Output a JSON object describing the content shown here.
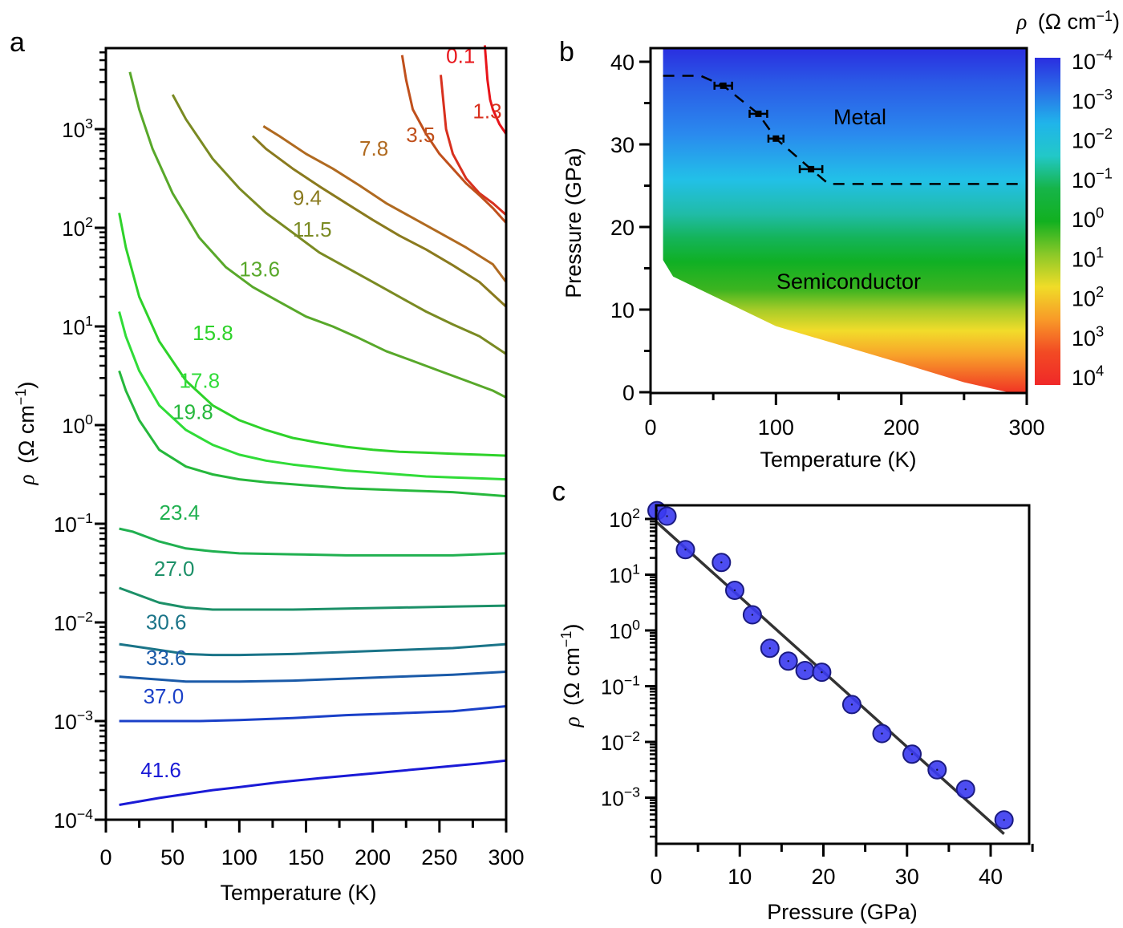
{
  "chart_data": [
    {
      "panel": "a",
      "type": "line",
      "xlabel": "Temperature (K)",
      "ylabel": "ρ (Ω cm⁻¹)",
      "xlim": [
        0,
        300
      ],
      "ylim_log10": [
        -4,
        3.8
      ],
      "yscale": "log",
      "xticks": [
        "0",
        "50",
        "100",
        "150",
        "200",
        "250",
        "300"
      ],
      "yticks": [
        {
          "exp": "−4"
        },
        {
          "exp": "−3"
        },
        {
          "exp": "−2"
        },
        {
          "exp": "−1"
        },
        {
          "exp": "0"
        },
        {
          "exp": "1"
        },
        {
          "exp": "2"
        },
        {
          "exp": "3"
        }
      ],
      "series": [
        {
          "name": "0.1",
          "color": "#e8141a",
          "x": [
            284,
            286,
            288,
            290,
            295,
            300
          ],
          "log10y": [
            3.85,
            3.5,
            3.3,
            3.2,
            3.05,
            2.95
          ],
          "label_x": 255,
          "label_log10y": 3.67
        },
        {
          "name": "1.3",
          "color": "#d8301e",
          "x": [
            251,
            255,
            260,
            270,
            280,
            290,
            300
          ],
          "log10y": [
            3.55,
            3.0,
            2.75,
            2.5,
            2.35,
            2.25,
            2.13
          ],
          "label_x": 275,
          "label_log10y": 3.11
        },
        {
          "name": "3.5",
          "color": "#c0501c",
          "x": [
            222,
            225,
            230,
            240,
            250,
            260,
            270,
            280,
            290,
            300
          ],
          "log10y": [
            3.75,
            3.5,
            3.2,
            2.95,
            2.75,
            2.6,
            2.45,
            2.33,
            2.2,
            2.05
          ],
          "label_x": 225,
          "label_log10y": 2.87
        },
        {
          "name": "7.8",
          "color": "#b06a20",
          "x": [
            118,
            130,
            150,
            170,
            190,
            210,
            230,
            250,
            270,
            290,
            300
          ],
          "log10y": [
            3.03,
            2.93,
            2.75,
            2.6,
            2.43,
            2.25,
            2.1,
            1.95,
            1.8,
            1.63,
            1.45
          ],
          "label_x": 190,
          "label_log10y": 2.73
        },
        {
          "name": "9.4",
          "color": "#8a7a1e",
          "x": [
            110,
            120,
            140,
            160,
            180,
            200,
            220,
            240,
            260,
            280,
            300
          ],
          "log10y": [
            2.93,
            2.8,
            2.6,
            2.42,
            2.25,
            2.08,
            1.92,
            1.78,
            1.62,
            1.45,
            1.2
          ],
          "label_x": 140,
          "label_log10y": 2.23
        },
        {
          "name": "11.5",
          "color": "#7a8a22",
          "x": [
            50,
            60,
            80,
            100,
            120,
            140,
            160,
            180,
            200,
            220,
            240,
            260,
            280,
            300
          ],
          "log10y": [
            3.35,
            3.1,
            2.7,
            2.4,
            2.15,
            1.95,
            1.75,
            1.6,
            1.45,
            1.3,
            1.15,
            1.02,
            0.9,
            0.72
          ],
          "label_x": 140,
          "label_log10y": 1.91
        },
        {
          "name": "13.6",
          "color": "#58a82a",
          "x": [
            18,
            25,
            35,
            50,
            70,
            90,
            110,
            130,
            150,
            170,
            190,
            210,
            230,
            250,
            270,
            290,
            300
          ],
          "log10y": [
            3.58,
            3.2,
            2.8,
            2.35,
            1.9,
            1.6,
            1.4,
            1.25,
            1.1,
            1.0,
            0.88,
            0.75,
            0.65,
            0.55,
            0.45,
            0.35,
            0.28
          ],
          "label_x": 100,
          "label_log10y": 1.51
        },
        {
          "name": "15.8",
          "color": "#2ed22a",
          "x": [
            10,
            15,
            25,
            40,
            60,
            80,
            100,
            120,
            140,
            160,
            180,
            200,
            220,
            240,
            260,
            280,
            300
          ],
          "log10y": [
            2.15,
            1.8,
            1.3,
            0.85,
            0.45,
            0.2,
            0.05,
            -0.05,
            -0.13,
            -0.18,
            -0.22,
            -0.25,
            -0.27,
            -0.28,
            -0.29,
            -0.3,
            -0.31
          ],
          "label_x": 65,
          "label_log10y": 0.86
        },
        {
          "name": "17.8",
          "color": "#30dc38",
          "x": [
            10,
            15,
            25,
            40,
            60,
            80,
            100,
            120,
            140,
            160,
            180,
            200,
            220,
            240,
            260,
            280,
            300
          ],
          "log10y": [
            1.15,
            0.9,
            0.55,
            0.2,
            -0.05,
            -0.2,
            -0.3,
            -0.36,
            -0.4,
            -0.43,
            -0.46,
            -0.48,
            -0.5,
            -0.52,
            -0.53,
            -0.54,
            -0.55
          ],
          "label_x": 55,
          "label_log10y": 0.38
        },
        {
          "name": "19.8",
          "color": "#26b83c",
          "x": [
            10,
            15,
            25,
            40,
            60,
            80,
            100,
            120,
            140,
            160,
            180,
            200,
            220,
            240,
            260,
            280,
            300
          ],
          "log10y": [
            0.55,
            0.35,
            0.05,
            -0.25,
            -0.42,
            -0.5,
            -0.55,
            -0.58,
            -0.6,
            -0.62,
            -0.64,
            -0.65,
            -0.66,
            -0.67,
            -0.68,
            -0.7,
            -0.72
          ],
          "label_x": 50,
          "label_log10y": 0.06
        },
        {
          "name": "23.4",
          "color": "#20b050",
          "x": [
            10,
            20,
            40,
            60,
            80,
            100,
            140,
            180,
            220,
            260,
            300
          ],
          "log10y": [
            -1.05,
            -1.08,
            -1.18,
            -1.25,
            -1.28,
            -1.3,
            -1.31,
            -1.32,
            -1.32,
            -1.32,
            -1.3
          ],
          "label_x": 40,
          "label_log10y": -0.96
        },
        {
          "name": "27.0",
          "color": "#1c9068",
          "x": [
            10,
            20,
            40,
            60,
            80,
            100,
            140,
            180,
            220,
            260,
            300
          ],
          "log10y": [
            -1.65,
            -1.7,
            -1.8,
            -1.85,
            -1.87,
            -1.87,
            -1.87,
            -1.86,
            -1.85,
            -1.84,
            -1.83
          ],
          "label_x": 36,
          "label_log10y": -1.53
        },
        {
          "name": "30.6",
          "color": "#1a7488",
          "x": [
            10,
            20,
            40,
            60,
            80,
            100,
            140,
            180,
            220,
            260,
            300
          ],
          "log10y": [
            -2.22,
            -2.24,
            -2.28,
            -2.32,
            -2.33,
            -2.33,
            -2.32,
            -2.3,
            -2.28,
            -2.26,
            -2.22
          ],
          "label_x": 30,
          "label_log10y": -2.07
        },
        {
          "name": "33.6",
          "color": "#1a5aa8",
          "x": [
            10,
            20,
            40,
            60,
            80,
            100,
            140,
            180,
            220,
            260,
            300
          ],
          "log10y": [
            -2.55,
            -2.56,
            -2.58,
            -2.6,
            -2.6,
            -2.6,
            -2.59,
            -2.57,
            -2.55,
            -2.53,
            -2.5
          ],
          "label_x": 30,
          "label_log10y": -2.43
        },
        {
          "name": "37.0",
          "color": "#1a40c8",
          "x": [
            10,
            30,
            50,
            70,
            100,
            140,
            180,
            220,
            260,
            300
          ],
          "log10y": [
            -3.0,
            -3.0,
            -3.0,
            -3.0,
            -2.99,
            -2.97,
            -2.94,
            -2.92,
            -2.9,
            -2.85
          ],
          "label_x": 28,
          "label_log10y": -2.82
        },
        {
          "name": "41.6",
          "color": "#1a1ad6",
          "x": [
            10,
            40,
            60,
            80,
            100,
            130,
            160,
            200,
            240,
            280,
            300
          ],
          "log10y": [
            -3.85,
            -3.78,
            -3.74,
            -3.7,
            -3.67,
            -3.62,
            -3.58,
            -3.53,
            -3.48,
            -3.43,
            -3.4
          ],
          "label_x": 26,
          "label_log10y": -3.57
        }
      ]
    },
    {
      "panel": "b",
      "type": "heatmap",
      "xlabel": "Temperature (K)",
      "ylabel": "Pressure (GPa)",
      "xlim": [
        0,
        300
      ],
      "ylim": [
        0,
        42
      ],
      "xticks": [
        "0",
        "100",
        "200",
        "300"
      ],
      "yticks": [
        "0",
        "10",
        "20",
        "30",
        "40"
      ],
      "colorbar": {
        "title": "ρ (Ω cm⁻¹)",
        "ticks": [
          {
            "exp": "−4"
          },
          {
            "exp": "−3"
          },
          {
            "exp": "−2"
          },
          {
            "exp": "−1"
          },
          {
            "exp": "0"
          },
          {
            "exp": "1"
          },
          {
            "exp": "2"
          },
          {
            "exp": "3"
          },
          {
            "exp": "4"
          }
        ],
        "log10_range": [
          -4,
          4
        ],
        "colors": [
          "#2a2ee0",
          "#2a6ee8",
          "#20b4ea",
          "#22c8c8",
          "#16b448",
          "#12b020",
          "#8ac828",
          "#f0dc28",
          "#f89a28",
          "#f24a24",
          "#f02828"
        ]
      },
      "regions": [
        {
          "label": "Metal",
          "x": 170,
          "y": 33.5
        },
        {
          "label": "Semiconductor",
          "x": 160,
          "y": 13.5
        }
      ],
      "boundary_points": [
        {
          "T": 58,
          "P": 37.1,
          "err_T": 7
        },
        {
          "T": 86,
          "P": 33.7,
          "err_T": 7
        },
        {
          "T": 100,
          "P": 30.7,
          "err_T": 6
        },
        {
          "T": 128,
          "P": 27.0,
          "err_T": 9
        }
      ],
      "boundary_line": {
        "T": [
          10,
          40,
          58,
          86,
          100,
          128,
          142,
          300
        ],
        "P": [
          38.3,
          38.3,
          37.1,
          33.7,
          30.7,
          27.0,
          25.2,
          25.2
        ],
        "style": "dashed"
      },
      "data_edge": {
        "T": [
          10,
          10,
          18,
          100,
          200,
          250,
          285,
          300
        ],
        "P": [
          42,
          16,
          14,
          8,
          3.5,
          1.2,
          0,
          0
        ]
      }
    },
    {
      "panel": "c",
      "type": "scatter",
      "xlabel": "Pressure (GPa)",
      "ylabel": "ρ (Ω cm⁻¹)",
      "yscale": "log",
      "xlim": [
        0,
        45
      ],
      "ylim_log10": [
        -3.75,
        2.25
      ],
      "xticks": [
        "0",
        "10",
        "20",
        "30",
        "40"
      ],
      "yticks": [
        {
          "exp": "2"
        },
        {
          "exp": "1"
        },
        {
          "exp": "0"
        },
        {
          "exp": "−1"
        },
        {
          "exp": "−2"
        },
        {
          "exp": "−3"
        }
      ],
      "points": [
        {
          "x": 0.1,
          "log10y": 2.15
        },
        {
          "x": 1.3,
          "log10y": 2.05
        },
        {
          "x": 3.5,
          "log10y": 1.45
        },
        {
          "x": 7.8,
          "log10y": 1.22
        },
        {
          "x": 9.4,
          "log10y": 0.72
        },
        {
          "x": 11.5,
          "log10y": 0.28
        },
        {
          "x": 13.6,
          "log10y": -0.32
        },
        {
          "x": 15.8,
          "log10y": -0.55
        },
        {
          "x": 17.8,
          "log10y": -0.72
        },
        {
          "x": 19.8,
          "log10y": -0.75
        },
        {
          "x": 23.4,
          "log10y": -1.33
        },
        {
          "x": 27.0,
          "log10y": -1.85
        },
        {
          "x": 30.6,
          "log10y": -2.22
        },
        {
          "x": 33.6,
          "log10y": -2.5
        },
        {
          "x": 37.0,
          "log10y": -2.85
        },
        {
          "x": 41.6,
          "log10y": -3.4
        }
      ],
      "fit_line": {
        "x": [
          0,
          41.6
        ],
        "log10y": [
          1.95,
          -3.65
        ]
      },
      "point_color": "#3a3af0"
    }
  ],
  "labels": {
    "panel_a": "a",
    "panel_b": "b",
    "panel_c": "c",
    "base": "10",
    "rho_symbol": "ρ",
    "rho_unit": "(Ω cm",
    "rho_unit_exp": "−1",
    "rho_unit_close": ")",
    "temperature": "Temperature (K)",
    "pressure_gpa": "Pressure (GPa)",
    "metal": "Metal",
    "semiconductor": "Semiconductor"
  }
}
